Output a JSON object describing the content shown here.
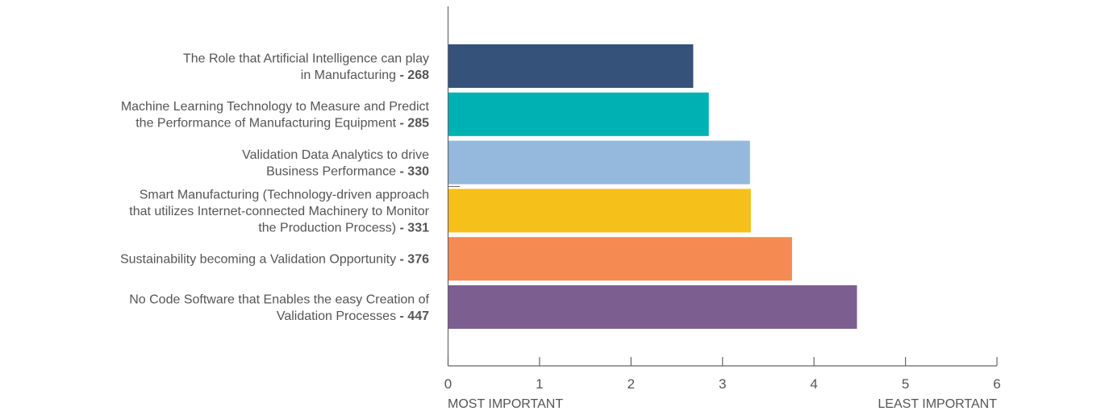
{
  "chart_data": {
    "type": "bar",
    "orientation": "horizontal",
    "categories": [
      {
        "lines": [
          "The Role that Artificial Intelligence can play",
          "in Manufacturing"
        ],
        "value_label": " - 268"
      },
      {
        "lines": [
          "Machine Learning Technology to Measure and Predict",
          "the Performance of Manufacturing Equipment"
        ],
        "value_label": " - 285"
      },
      {
        "lines": [
          "Validation Data Analytics to drive",
          "Business Performance"
        ],
        "value_label": " - 330"
      },
      {
        "lines": [
          "Smart Manufacturing (Technology-driven approach",
          "that utilizes Internet-connected Machinery to Monitor",
          "the Production Process)"
        ],
        "value_label": " - 331"
      },
      {
        "lines": [
          "Sustainability becoming a Validation Opportunity"
        ],
        "value_label": " - 376"
      },
      {
        "lines": [
          "No Code Software that Enables the easy Creation of",
          "Validation Processes"
        ],
        "value_label": " - 447"
      }
    ],
    "values": [
      2.68,
      2.85,
      3.3,
      3.31,
      3.76,
      4.47
    ],
    "colors": [
      "#34527a",
      "#00b1b3",
      "#95b9dc",
      "#f4c019",
      "#f58b53",
      "#7d5e91"
    ],
    "xlim": [
      0,
      6
    ],
    "x_ticks": [
      "0",
      "1",
      "2",
      "3",
      "4",
      "5",
      "6"
    ],
    "x_end_labels": {
      "left": "MOST IMPORTANT",
      "right": "LEAST IMPORTANT"
    },
    "grid": false,
    "legend": "none"
  }
}
